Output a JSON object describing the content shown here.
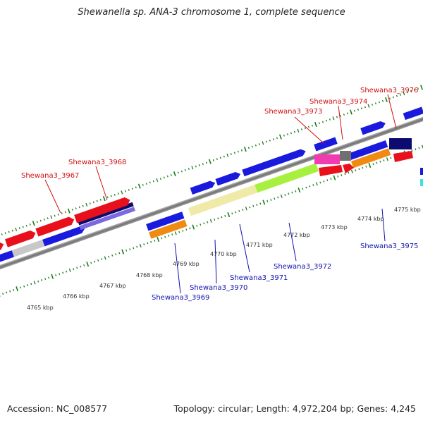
{
  "title": "Shewanella sp. ANA-3 chromosome 1, complete sequence",
  "footer": {
    "accession": "Accession: NC_008577",
    "summary": "Topology: circular; Length: 4,972,204 bp; Genes: 4,245"
  },
  "kbp_labels": [
    "4765 kbp",
    "4766 kbp",
    "4767 kbp",
    "4768 kbp",
    "4769 kbp",
    "4770 kbp",
    "4771 kbp",
    "4772 kbp",
    "4773 kbp",
    "4774 kbp",
    "4775 kbp"
  ],
  "top_gene_labels": [
    "Shewana3_3967",
    "Shewana3_3968",
    "Shewana3_3973",
    "Shewana3_3974",
    "Shewana3_3976"
  ],
  "bottom_gene_labels": [
    "Shewana3_3969",
    "Shewana3_3970",
    "Shewana3_3971",
    "Shewana3_3972",
    "Shewana3_3975"
  ],
  "colors": {
    "top_label": "#d01010",
    "bottom_label": "#1010b0",
    "blue": "#1a1adf",
    "red": "#e8101a",
    "navy": "#0c0c70",
    "orange": "#f08a10",
    "lime": "#a8f040",
    "khaki": "#f0eaa8",
    "magenta": "#f03cb0",
    "gray": "#707070",
    "silver": "#c8c8c8",
    "tick": "#1a7a1a"
  }
}
